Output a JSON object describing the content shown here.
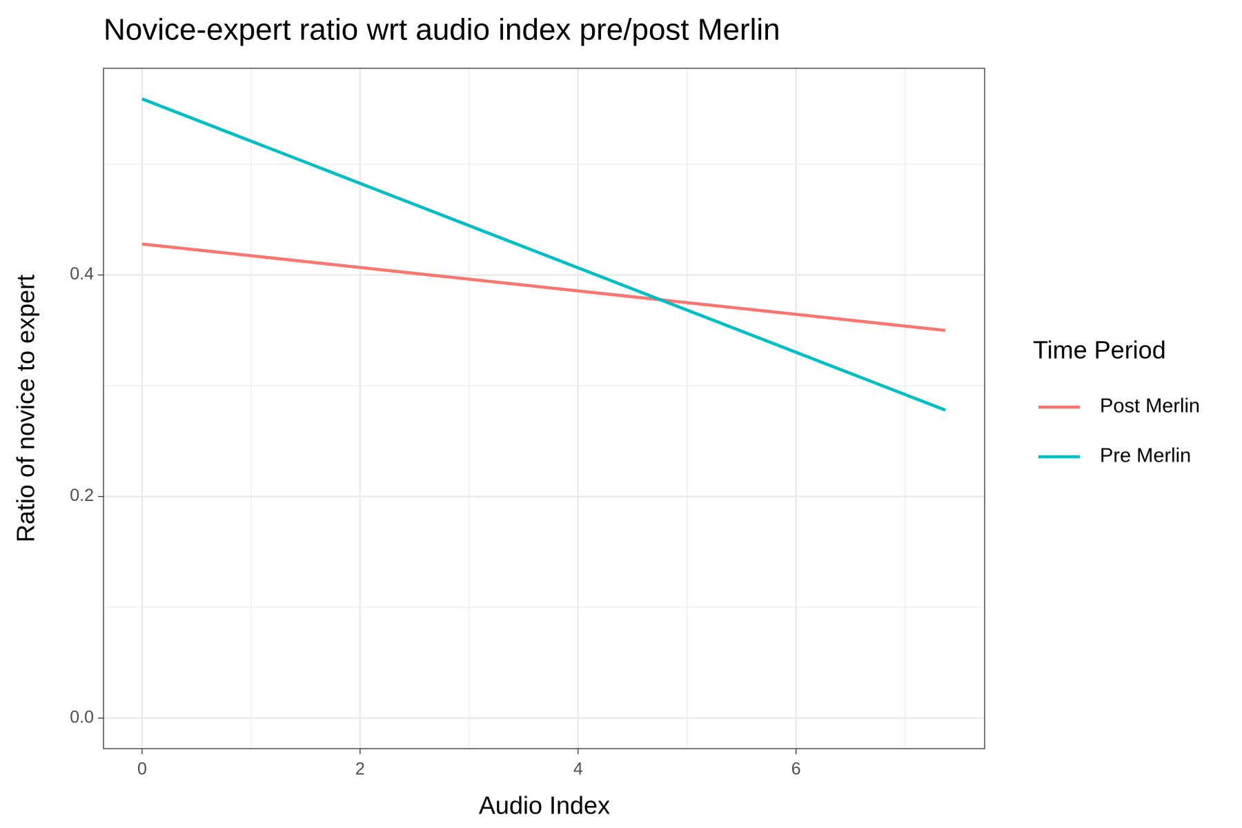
{
  "chart_data": {
    "type": "line",
    "title": "Novice-expert ratio wrt audio index pre/post Merlin",
    "x_label": "Audio Index",
    "y_label": "Ratio of novice to expert",
    "legend_title": "Time Period",
    "legend": "right",
    "grid": true,
    "x": [
      0,
      7.37
    ],
    "series": [
      {
        "name": "Post Merlin",
        "color": "#f8766d",
        "values": [
          0.428,
          0.35
        ]
      },
      {
        "name": "Pre Merlin",
        "color": "#00bfc4",
        "values": [
          0.559,
          0.278
        ]
      }
    ],
    "xlim": [
      -0.354,
      7.73
    ],
    "xticks": [
      0,
      2,
      4,
      6
    ],
    "minor_xticks": [
      1,
      3,
      5,
      7
    ],
    "ylim": [
      -0.0276,
      0.5866
    ],
    "yticks": [
      {
        "value": 0,
        "label": "0.0"
      },
      {
        "value": 0.2,
        "label": "0.2"
      },
      {
        "value": 0.4,
        "label": "0.4"
      }
    ],
    "minor_yticks": [
      0.1,
      0.3,
      0.5
    ]
  }
}
